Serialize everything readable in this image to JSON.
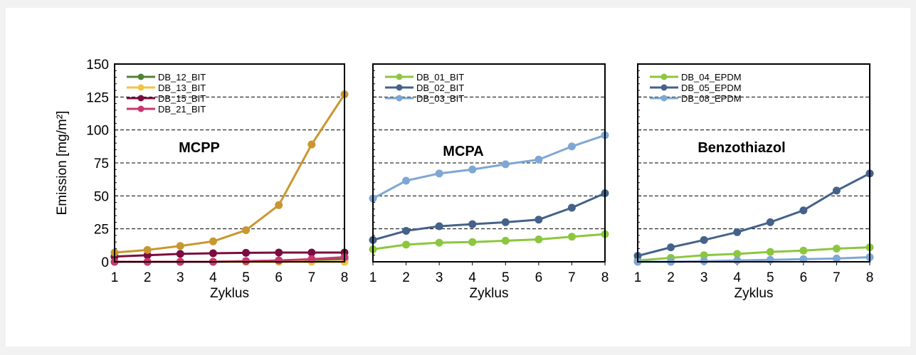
{
  "chart_data": [
    {
      "type": "line",
      "title": "MCPP",
      "xlabel": "Zyklus",
      "ylabel": "Emission [mg/m²]",
      "x": [
        1,
        2,
        3,
        4,
        5,
        6,
        7,
        8
      ],
      "xlim": [
        1,
        8
      ],
      "ylim": [
        0,
        150
      ],
      "yticks": [
        0,
        25,
        50,
        75,
        100,
        125,
        150
      ],
      "grid": "horizontal-dashed",
      "legend_position": "top-left",
      "series": [
        {
          "name": "DB_12_BIT",
          "color": "#538135",
          "values": [
            0,
            0,
            0,
            0,
            0.5,
            1,
            1.5,
            2
          ]
        },
        {
          "name": "DB_13_BIT",
          "color": "#f5c242",
          "values": [
            0,
            0,
            0,
            0,
            0,
            0,
            0,
            0
          ]
        },
        {
          "name": "DB_15_BIT",
          "color": "#7b0c3f",
          "values": [
            4,
            5,
            6,
            6.5,
            6.8,
            7,
            7,
            7
          ]
        },
        {
          "name": "DB_21_BIT",
          "color": "#c8376f",
          "values": [
            0,
            0,
            0,
            0,
            0.5,
            1,
            2,
            3.5
          ]
        },
        {
          "name": "",
          "color": "#c9972f",
          "values": [
            7,
            9,
            12,
            15.5,
            24,
            43,
            89,
            127
          ]
        }
      ]
    },
    {
      "type": "line",
      "title": "MCPA",
      "xlabel": "Zyklus",
      "ylabel": "",
      "x": [
        1,
        2,
        3,
        4,
        5,
        6,
        7,
        8
      ],
      "xlim": [
        1,
        8
      ],
      "ylim": [
        0,
        150
      ],
      "yticks": [
        0,
        25,
        50,
        75,
        100,
        125,
        150
      ],
      "grid": "horizontal-dashed",
      "legend_position": "top-left",
      "series": [
        {
          "name": "DB_01_BIT",
          "color": "#8cc63f",
          "values": [
            9.5,
            13,
            14.5,
            15,
            16,
            17,
            19,
            21
          ]
        },
        {
          "name": "DB_02_BIT",
          "color": "#44628a",
          "values": [
            16.5,
            23.5,
            27,
            28.5,
            30,
            32,
            41,
            52
          ]
        },
        {
          "name": "DB_03_BIT",
          "color": "#7ea7d4",
          "values": [
            48,
            61.5,
            67,
            70,
            74,
            77.5,
            87.5,
            96
          ]
        }
      ]
    },
    {
      "type": "line",
      "title": "Benzothiazol",
      "xlabel": "Zyklus",
      "ylabel": "",
      "x": [
        1,
        2,
        3,
        4,
        5,
        6,
        7,
        8
      ],
      "xlim": [
        1,
        8
      ],
      "ylim": [
        0,
        150
      ],
      "yticks": [
        0,
        25,
        50,
        75,
        100,
        125,
        150
      ],
      "grid": "horizontal-dashed",
      "legend_position": "top-left",
      "series": [
        {
          "name": "DB_04_EPDM",
          "color": "#8cc63f",
          "values": [
            1,
            3,
            5,
            6,
            7.5,
            8.5,
            10,
            11
          ]
        },
        {
          "name": "DB_05_EPDM",
          "color": "#44628a",
          "values": [
            4.5,
            11,
            16.5,
            22.5,
            30,
            39,
            54,
            67
          ]
        },
        {
          "name": "DB_08_EPDM",
          "color": "#7ea7d4",
          "values": [
            0,
            0,
            0.5,
            1,
            1.5,
            2,
            2.5,
            3.5
          ]
        }
      ]
    }
  ]
}
